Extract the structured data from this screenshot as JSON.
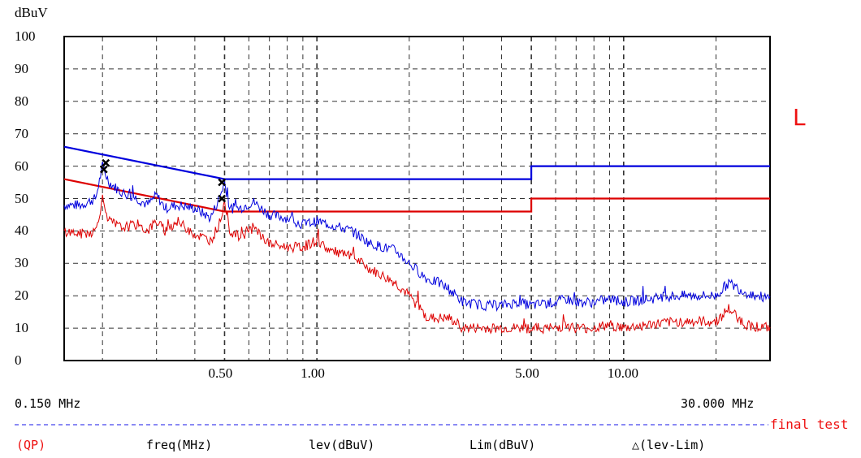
{
  "chart_data": {
    "type": "line",
    "title": "",
    "ylabel": "dBuV",
    "ylim": [
      0,
      100
    ],
    "y_ticks": [
      "0",
      "10",
      "20",
      "30",
      "40",
      "50",
      "60",
      "70",
      "80",
      "90",
      "100"
    ],
    "x_scale": "log",
    "xlim": [
      0.15,
      30.0
    ],
    "x_tick_labels": [
      {
        "value": 0.5,
        "label": "0.50"
      },
      {
        "value": 1.0,
        "label": "1.00"
      },
      {
        "value": 5.0,
        "label": "5.00"
      },
      {
        "value": 10.0,
        "label": "10.00"
      }
    ],
    "x_start_label": "0.150 MHz",
    "x_end_label": "30.000 MHz",
    "grid": true,
    "line_label": "L",
    "series": [
      {
        "color": "#0000dd",
        "style": "solid",
        "x": [
          0.15,
          0.5,
          0.5,
          5.0,
          5.0,
          30.0
        ],
        "y": [
          66,
          56,
          56,
          56,
          60,
          60
        ]
      },
      {
        "color": "#dd0000",
        "style": "solid",
        "x": [
          0.15,
          0.5,
          0.5,
          5.0,
          5.0,
          30.0
        ],
        "y": [
          56,
          46,
          46,
          46,
          50,
          50
        ]
      },
      {
        "color": "#0000dd",
        "style": "noisy",
        "x": [
          0.15,
          0.17,
          0.19,
          0.2,
          0.21,
          0.23,
          0.26,
          0.28,
          0.3,
          0.32,
          0.35,
          0.4,
          0.45,
          0.48,
          0.5,
          0.52,
          0.56,
          0.62,
          0.7,
          0.8,
          0.9,
          1.0,
          1.1,
          1.3,
          1.5,
          1.8,
          2.0,
          2.3,
          2.5,
          2.7,
          3.0,
          3.5,
          4.0,
          4.5,
          5.0,
          6.0,
          6.5,
          7.0,
          8.0,
          9.0,
          10.0,
          12.0,
          15.0,
          20.0,
          22.0,
          25.0,
          30.0
        ],
        "y": [
          48,
          48,
          50,
          60,
          55,
          52,
          50,
          48,
          51,
          47,
          48,
          47,
          44,
          50,
          55,
          47,
          47,
          49,
          45,
          44,
          42,
          43,
          42,
          40,
          36,
          34,
          30,
          25,
          24,
          22,
          18,
          17,
          17,
          18,
          17,
          18,
          19,
          18,
          18,
          19,
          18,
          19,
          20,
          20,
          24,
          21,
          19
        ]
      },
      {
        "color": "#dd0000",
        "style": "noisy",
        "x": [
          0.15,
          0.17,
          0.19,
          0.2,
          0.21,
          0.23,
          0.26,
          0.28,
          0.3,
          0.32,
          0.35,
          0.4,
          0.45,
          0.48,
          0.5,
          0.52,
          0.56,
          0.62,
          0.7,
          0.8,
          0.9,
          1.0,
          1.1,
          1.3,
          1.5,
          1.8,
          2.0,
          2.3,
          2.5,
          2.7,
          3.0,
          3.5,
          4.0,
          4.5,
          5.0,
          6.0,
          6.5,
          7.0,
          8.0,
          9.0,
          10.0,
          12.0,
          15.0,
          20.0,
          22.0,
          25.0,
          30.0
        ],
        "y": [
          40,
          39,
          40,
          50,
          43,
          41,
          42,
          40,
          43,
          40,
          43,
          39,
          37,
          42,
          49,
          40,
          38,
          41,
          36,
          35,
          35,
          37,
          34,
          32,
          28,
          24,
          20,
          13,
          13,
          13,
          10,
          10,
          10,
          10,
          10,
          10,
          11,
          10,
          10,
          11,
          10,
          11,
          12,
          12,
          16,
          11,
          10
        ]
      }
    ],
    "markers": [
      {
        "x": 0.205,
        "y": 61
      },
      {
        "x": 0.202,
        "y": 59
      },
      {
        "x": 0.49,
        "y": 55
      },
      {
        "x": 0.49,
        "y": 50
      }
    ]
  },
  "footer": {
    "final_test_label": "final test",
    "qp_label": "(QP)",
    "col_freq": "freq(MHz)",
    "col_lev": "lev(dBuV)",
    "col_lim": "Lim(dBuV)",
    "col_delta": "△(lev-Lim)"
  }
}
